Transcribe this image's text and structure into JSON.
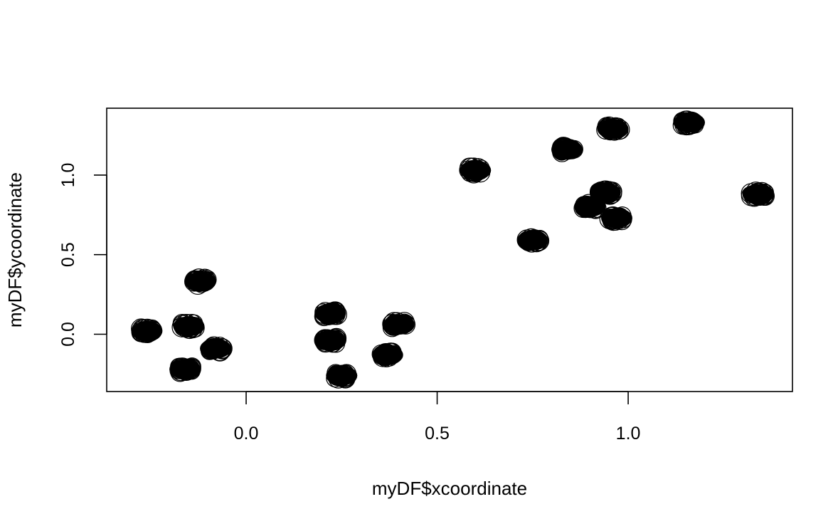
{
  "chart_data": {
    "type": "scatter",
    "title": "",
    "xlabel": "myDF$xcoordinate",
    "ylabel": "myDF$ycoordinate",
    "xlim": [
      -0.365,
      1.43
    ],
    "ylim": [
      -0.36,
      1.42
    ],
    "xticks": [
      0.0,
      0.5,
      1.0
    ],
    "xtick_labels": [
      "0.0",
      "0.5",
      "1.0"
    ],
    "yticks": [
      0.0,
      0.5,
      1.0
    ],
    "ytick_labels": [
      "0.0",
      "0.5",
      "1.0"
    ],
    "grid": false,
    "legend": "none",
    "point_color": "#000000",
    "points": [
      {
        "x": -0.26,
        "y": 0.02
      },
      {
        "x": -0.15,
        "y": 0.05
      },
      {
        "x": -0.12,
        "y": 0.33
      },
      {
        "x": -0.08,
        "y": -0.09
      },
      {
        "x": -0.16,
        "y": -0.22
      },
      {
        "x": 0.22,
        "y": 0.13
      },
      {
        "x": 0.22,
        "y": -0.04
      },
      {
        "x": 0.25,
        "y": -0.26
      },
      {
        "x": 0.37,
        "y": -0.13
      },
      {
        "x": 0.4,
        "y": 0.06
      },
      {
        "x": 0.6,
        "y": 1.03
      },
      {
        "x": 0.75,
        "y": 0.59
      },
      {
        "x": 0.84,
        "y": 1.16
      },
      {
        "x": 0.9,
        "y": 0.8
      },
      {
        "x": 0.94,
        "y": 0.89
      },
      {
        "x": 0.97,
        "y": 0.73
      },
      {
        "x": 0.96,
        "y": 1.29
      },
      {
        "x": 1.16,
        "y": 1.33
      },
      {
        "x": 1.34,
        "y": 0.88
      }
    ]
  }
}
